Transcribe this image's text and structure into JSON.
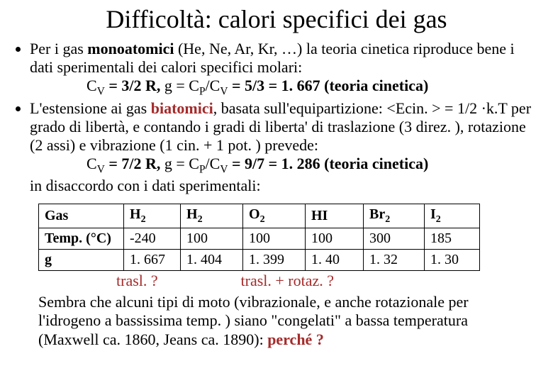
{
  "title": "Difficoltà: calori specifici dei gas",
  "bullet1": {
    "line1a": "Per i gas ",
    "line1b": "monoatomici",
    "line1c": " (He, Ne, Ar, Kr, …) la teoria cinetica riproduce bene i dati sperimentali dei calori specifici molari:",
    "eq_pre": "C",
    "eq_sub": "V",
    "eq_mid1": " = 3/2 R,   ",
    "gamma": "g",
    "eq_mid2": " = C",
    "eq_subP": "P",
    "eq_slashC": "/C",
    "eq_mid3": " = 5/3 = 1. 667  (teoria cinetica)"
  },
  "bullet2": {
    "l1a": "L'estensione ai gas ",
    "l1b": "biatomici",
    "l1c": ", basata sull'equipartizione: <Ecin. > = 1/2 ·k.T per grado di libertà, e contando i gradi di liberta' di traslazione (3 direz. ), rotazione (2 assi) e vibrazione (1 cin. + 1 pot. ) prevede:",
    "eq_pre": "C",
    "eq_mid1": " = 7/2 R,   ",
    "eq_mid3": " = 9/7 = 1. 286  (teoria cinetica)",
    "close": "in disaccordo con i dati sperimentali:"
  },
  "table": {
    "headers": {
      "c1": "Gas",
      "c2a": "H",
      "c2s": "2",
      "c3a": "H",
      "c3s": "2",
      "c4a": "O",
      "c4s": "2",
      "c5": "HI",
      "c6a": "Br",
      "c6s": "2",
      "c7a": "I",
      "c7s": "2"
    },
    "row_temp": {
      "label": "Temp. (°C)",
      "v1": "-240",
      "v2": "100",
      "v3": "100",
      "v4": "100",
      "v5": "300",
      "v6": "185"
    },
    "row_gamma": {
      "label": "g",
      "v1": "1. 667",
      "v2": "1. 404",
      "v3": "1. 399",
      "v4": "1. 40",
      "v5": "1. 32",
      "v6": "1. 30"
    }
  },
  "annot": {
    "a1": "trasl. ?",
    "a2": "trasl. + rotaz. ?"
  },
  "closing": {
    "t1": "Sembra che alcuni tipi di moto (vibrazionale, e anche rotazionale per l'idrogeno a bassissima temp. ) siano \"congelati\" a bassa temperatura (Maxwell ca. 1860, Jeans ca. 1890): ",
    "t2": "perché ?"
  },
  "colors": {
    "brown": "#a52a2a",
    "text": "#000000",
    "bg": "#ffffff"
  }
}
